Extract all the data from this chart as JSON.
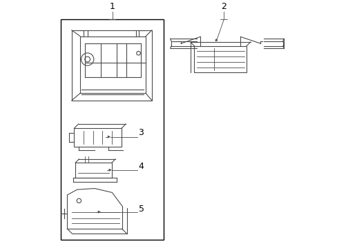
{
  "background_color": "#ffffff",
  "line_color": "#4a4a4a",
  "box_color": "#000000",
  "label_color": "#000000",
  "fig_width": 4.89,
  "fig_height": 3.6,
  "dpi": 100
}
